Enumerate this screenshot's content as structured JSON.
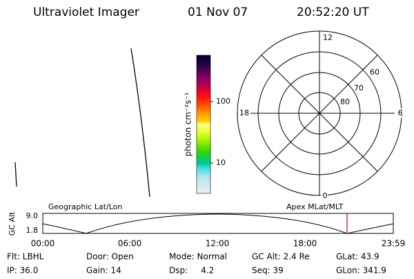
{
  "header": {
    "title": "Ultraviolet Imager",
    "date": "01 Nov 07",
    "time": "20:52:20 UT"
  },
  "colorbar": {
    "label": "photon cm⁻²s⁻¹",
    "tick_labels": [
      "100",
      "10"
    ]
  },
  "polar": {
    "mlt_labels": [
      "12",
      "6",
      "18",
      "0"
    ],
    "lat_labels": [
      "60",
      "70",
      "80"
    ]
  },
  "altitude_plot": {
    "left_title": "Geographic Lat/Lon",
    "right_title": "Apex MLat/MLT",
    "y_label": "GC Alt",
    "y_tick_labels": [
      "9.0",
      "1.8"
    ],
    "x_tick_labels": [
      "00:00",
      "06:00",
      "12:00",
      "18:00",
      "23:59"
    ]
  },
  "info": {
    "rows": [
      [
        "Flt: LBHL",
        "Door: Open",
        "Mode: Normal",
        "GC Alt: 2.4 Re",
        "GLat: 43.9"
      ],
      [
        "IP: 36.0",
        "Gain: 14",
        "Dsp:     4.2",
        "Seq: 39",
        "GLon: 341.9"
      ]
    ]
  }
}
